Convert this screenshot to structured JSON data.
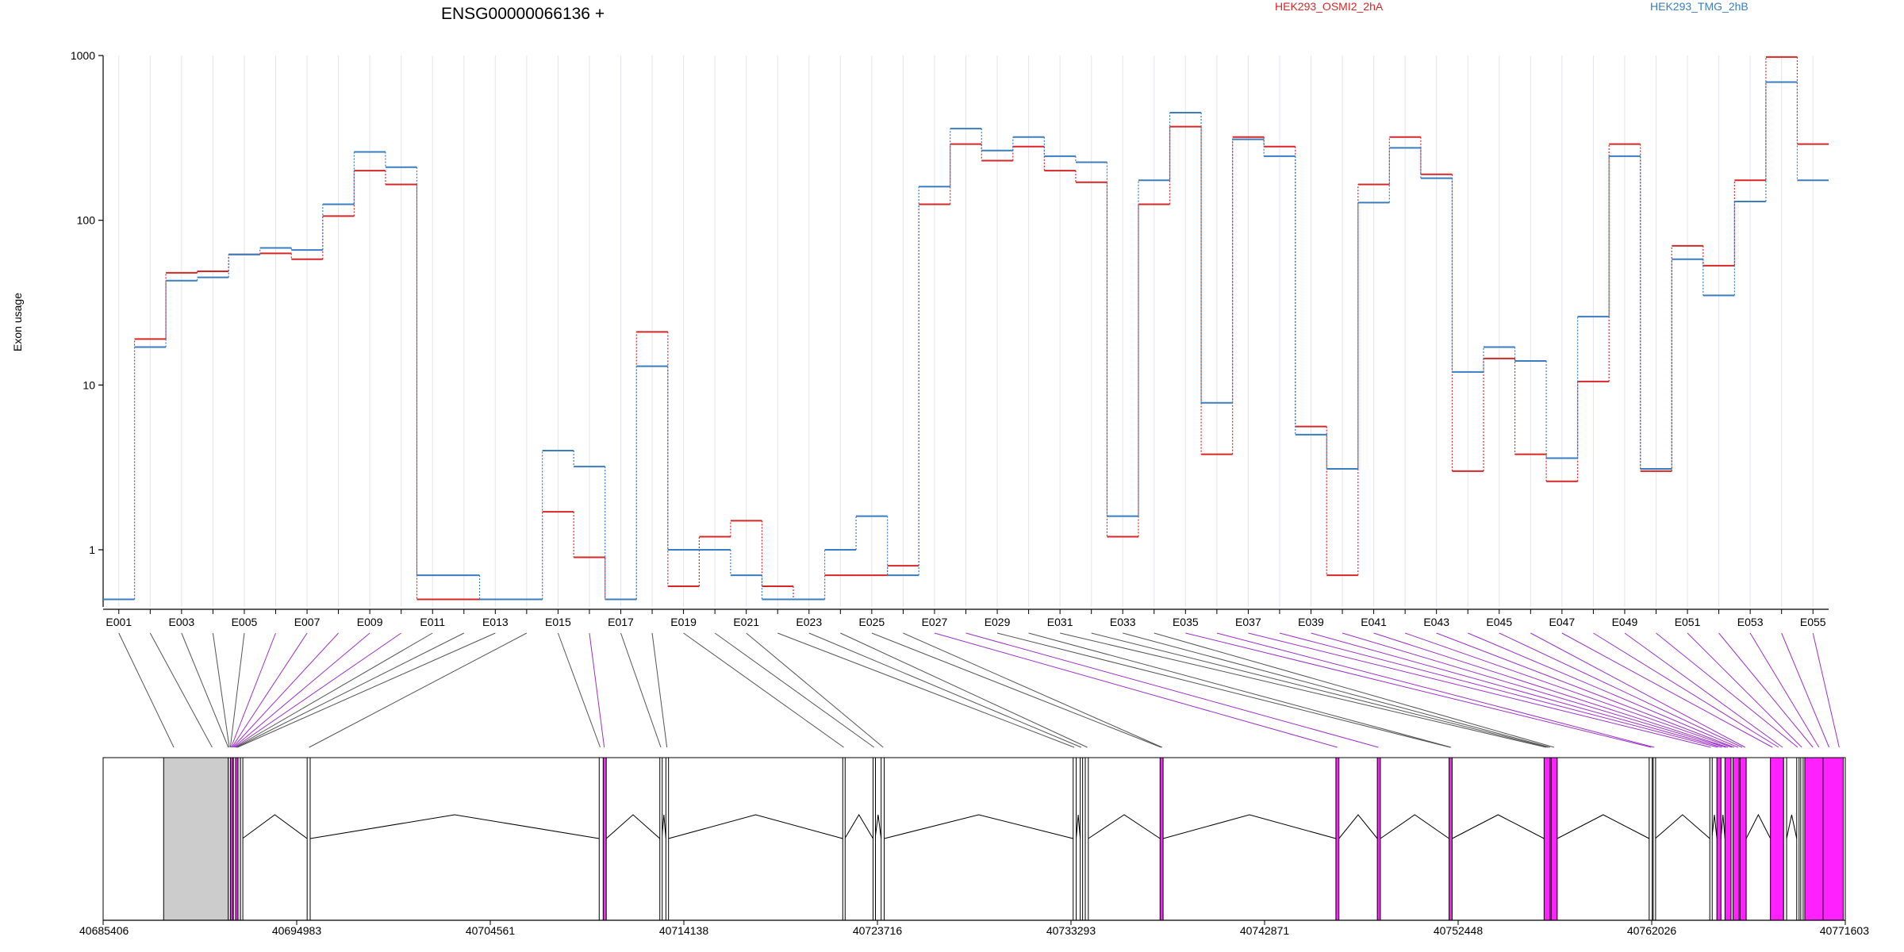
{
  "chart_data": {
    "type": "line",
    "title": "ENSG00000066136 +",
    "ylabel": "Exon usage",
    "yscale": "log",
    "ylim": [
      0.45,
      1000
    ],
    "yticks": [
      "1",
      "10",
      "100",
      "1000"
    ],
    "grid": "vertical",
    "legend_position": "top",
    "colors": {
      "HEK293_OSMI2_2hA": "#d62728",
      "HEK293_TMG_2hB": "#3a7dc0",
      "mark": "#ff22ff"
    },
    "categories": [
      "E001",
      "E002",
      "E003",
      "E004",
      "E005",
      "E006",
      "E007",
      "E008",
      "E009",
      "E010",
      "E011",
      "E012",
      "E013",
      "E014",
      "E015",
      "E016",
      "E017",
      "E018",
      "E019",
      "E020",
      "E021",
      "E022",
      "E023",
      "E024",
      "E025",
      "E026",
      "E027",
      "E028",
      "E029",
      "E030",
      "E031",
      "E032",
      "E033",
      "E034",
      "E035",
      "E036",
      "E037",
      "E038",
      "E039",
      "E040",
      "E041",
      "E042",
      "E043",
      "E044",
      "E045",
      "E046",
      "E047",
      "E048",
      "E049",
      "E050",
      "E051",
      "E052",
      "E053",
      "E054",
      "E055"
    ],
    "series": [
      {
        "name": "HEK293_OSMI2_2hA",
        "values": [
          0.5,
          19,
          48,
          49,
          62,
          63,
          58,
          106,
          200,
          165,
          0.5,
          0.5,
          0.5,
          0.5,
          1.7,
          0.9,
          0.5,
          21,
          0.6,
          1.2,
          1.5,
          0.6,
          0.5,
          0.7,
          0.7,
          0.8,
          125,
          290,
          230,
          280,
          200,
          170,
          1.2,
          125,
          370,
          3.8,
          320,
          280,
          5.6,
          0.7,
          165,
          320,
          190,
          3,
          14.5,
          3.8,
          2.6,
          10.5,
          290,
          3,
          70,
          53,
          175,
          980,
          290
        ]
      },
      {
        "name": "HEK293_TMG_2hB",
        "values": [
          0.5,
          17,
          43,
          45,
          62,
          68,
          66,
          125,
          260,
          210,
          0.7,
          0.7,
          0.5,
          0.5,
          4,
          3.2,
          0.5,
          13,
          1,
          1,
          0.7,
          0.5,
          0.5,
          1,
          1.6,
          0.7,
          160,
          360,
          265,
          320,
          245,
          225,
          1.6,
          175,
          450,
          7.8,
          310,
          245,
          5,
          3.1,
          128,
          275,
          180,
          12,
          17,
          14,
          3.6,
          26,
          245,
          3.1,
          58,
          35,
          130,
          690,
          175
        ]
      }
    ],
    "xticks_shown": [
      "E001",
      "E003",
      "E005",
      "E007",
      "E009",
      "E011",
      "E013",
      "E015",
      "E017",
      "E019",
      "E021",
      "E023",
      "E025",
      "E027",
      "E029",
      "E031",
      "E033",
      "E035",
      "E037",
      "E039",
      "E041",
      "E043",
      "E045",
      "E047",
      "E049",
      "E051",
      "E053",
      "E055"
    ],
    "genomic_axis": {
      "start": 40685406,
      "end": 40771603,
      "ticks": [
        "40685406",
        "40694983",
        "40704561",
        "40714138",
        "40723716",
        "40733293",
        "40742871",
        "40752448",
        "40762026",
        "40771603"
      ]
    },
    "gene_model": {
      "gray_region": [
        40688400,
        40691600
      ],
      "exons": [
        {
          "s": 40691600,
          "e": 40691700,
          "m": false
        },
        {
          "s": 40691700,
          "e": 40691780,
          "m": true
        },
        {
          "s": 40691850,
          "e": 40691900,
          "m": false
        },
        {
          "s": 40691960,
          "e": 40692030,
          "m": true
        },
        {
          "s": 40692080,
          "e": 40692120,
          "m": false
        },
        {
          "s": 40692200,
          "e": 40692300,
          "m": false
        },
        {
          "s": 40695500,
          "e": 40695650,
          "m": false
        },
        {
          "s": 40709950,
          "e": 40710150,
          "m": false
        },
        {
          "s": 40710150,
          "e": 40710300,
          "m": true
        },
        {
          "s": 40712950,
          "e": 40713050,
          "m": false
        },
        {
          "s": 40713250,
          "e": 40713380,
          "m": false
        },
        {
          "s": 40722000,
          "e": 40722100,
          "m": false
        },
        {
          "s": 40723500,
          "e": 40723600,
          "m": false
        },
        {
          "s": 40723900,
          "e": 40724050,
          "m": false
        },
        {
          "s": 40733400,
          "e": 40733550,
          "m": false
        },
        {
          "s": 40733750,
          "e": 40733850,
          "m": false
        },
        {
          "s": 40734000,
          "e": 40734150,
          "m": false
        },
        {
          "s": 40737700,
          "e": 40737850,
          "m": true
        },
        {
          "s": 40746400,
          "e": 40746550,
          "m": true
        },
        {
          "s": 40748450,
          "e": 40748600,
          "m": true
        },
        {
          "s": 40752000,
          "e": 40752150,
          "m": true
        },
        {
          "s": 40756700,
          "e": 40757000,
          "m": true
        },
        {
          "s": 40757050,
          "e": 40757350,
          "m": true
        },
        {
          "s": 40761900,
          "e": 40762050,
          "m": false
        },
        {
          "s": 40762100,
          "e": 40762200,
          "m": false
        },
        {
          "s": 40764900,
          "e": 40765000,
          "m": false
        },
        {
          "s": 40765250,
          "e": 40765450,
          "m": true
        },
        {
          "s": 40765650,
          "e": 40765950,
          "m": true
        },
        {
          "s": 40766050,
          "e": 40766350,
          "m": true
        },
        {
          "s": 40766400,
          "e": 40766700,
          "m": true
        },
        {
          "s": 40767900,
          "e": 40768550,
          "m": true
        },
        {
          "s": 40768550,
          "e": 40768700,
          "m": false
        },
        {
          "s": 40769200,
          "e": 40769300,
          "m": false
        },
        {
          "s": 40769400,
          "e": 40769500,
          "m": false
        },
        {
          "s": 40769600,
          "e": 40770500,
          "m": true
        },
        {
          "s": 40770500,
          "e": 40771500,
          "m": true
        }
      ],
      "connector_targets": [
        40688900,
        40690800,
        40691600,
        40691650,
        40691700,
        40691740,
        40691780,
        40691820,
        40691870,
        40691920,
        40691960,
        40692000,
        40692050,
        40695600,
        40710000,
        40710200,
        40713000,
        40713300,
        40722050,
        40723550,
        40724000,
        40733450,
        40733800,
        40734100,
        40737750,
        40737800,
        40746470,
        40748500,
        40752050,
        40752100,
        40756800,
        40756900,
        40757000,
        40757200,
        40762000,
        40762150,
        40764950,
        40765300,
        40765500,
        40765700,
        40765800,
        40766000,
        40766100,
        40766300,
        40766500,
        40766650,
        40768000,
        40768300,
        40768500,
        40769250,
        40769450,
        40770000,
        40770300,
        40770800,
        40771300
      ],
      "purple_connectors": [
        5,
        6,
        7,
        8,
        9,
        15,
        26,
        27,
        34,
        35,
        36,
        37,
        38,
        39,
        40,
        41,
        42,
        43,
        44,
        45,
        46,
        47,
        48,
        49,
        50,
        51,
        52,
        53,
        54
      ]
    }
  }
}
